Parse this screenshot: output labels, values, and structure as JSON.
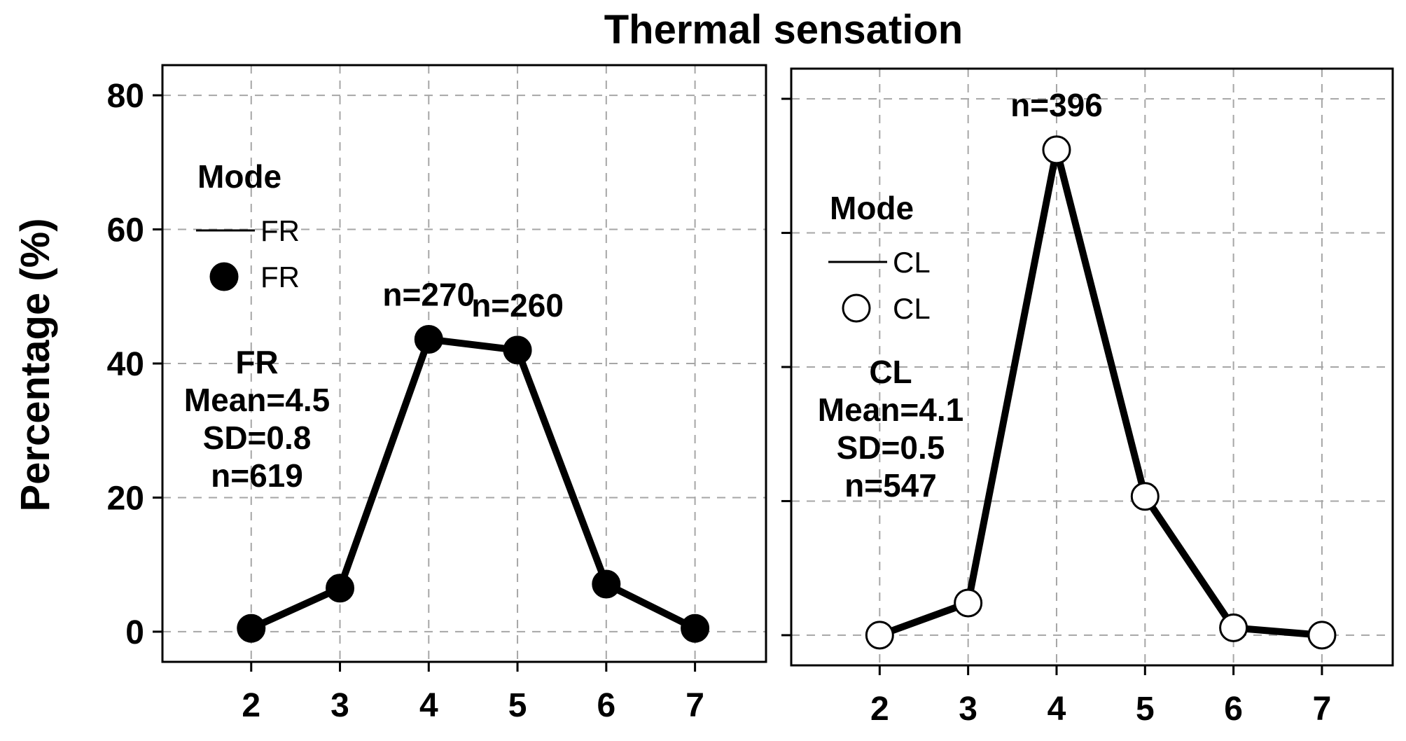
{
  "title": "Thermal sensation",
  "ylabel": "Percentage (%)",
  "colors": {
    "line": "#000000",
    "grid": "#a6a6a6",
    "background": "#ffffff"
  },
  "chart_data": [
    {
      "type": "line",
      "panel": "left",
      "series_name": "FR",
      "marker": "filled-circle",
      "x": [
        2,
        3,
        4,
        5,
        6,
        7
      ],
      "values": [
        0.5,
        6.5,
        43.6,
        42.0,
        7.1,
        0.5
      ],
      "xlim": [
        1.0,
        7.8
      ],
      "ylim": [
        -4.5,
        84.5
      ],
      "xticks": [
        "2",
        "3",
        "4",
        "5",
        "6",
        "7"
      ],
      "yticks": [
        "0",
        "20",
        "40",
        "60",
        "80"
      ],
      "show_y_tick_labels": true,
      "grid": true,
      "legend": {
        "title": "Mode",
        "line_label": "FR",
        "marker_label": "FR",
        "placement": "left"
      },
      "stats": {
        "label": "FR",
        "mean": "Mean=4.5",
        "sd": "SD=0.8",
        "n": "n=619"
      },
      "annotations": [
        {
          "text": "n=270",
          "x": 4
        },
        {
          "text": "n=260",
          "x": 5
        }
      ]
    },
    {
      "type": "line",
      "panel": "right",
      "series_name": "CL",
      "marker": "open-circle",
      "x": [
        2,
        3,
        4,
        5,
        6,
        7
      ],
      "values": [
        0.0,
        4.8,
        72.4,
        20.7,
        1.1,
        0.0
      ],
      "xlim": [
        1.0,
        7.8
      ],
      "ylim": [
        -4.5,
        84.5
      ],
      "xticks": [
        "2",
        "3",
        "4",
        "5",
        "6",
        "7"
      ],
      "yticks": [
        "0",
        "20",
        "40",
        "60",
        "80"
      ],
      "show_y_tick_labels": false,
      "grid": true,
      "legend": {
        "title": "Mode",
        "line_label": "CL",
        "marker_label": "CL",
        "placement": "left"
      },
      "stats": {
        "label": "CL",
        "mean": "Mean=4.1",
        "sd": "SD=0.5",
        "n": "n=547"
      },
      "annotations": [
        {
          "text": "n=396",
          "x": 4
        }
      ]
    }
  ]
}
